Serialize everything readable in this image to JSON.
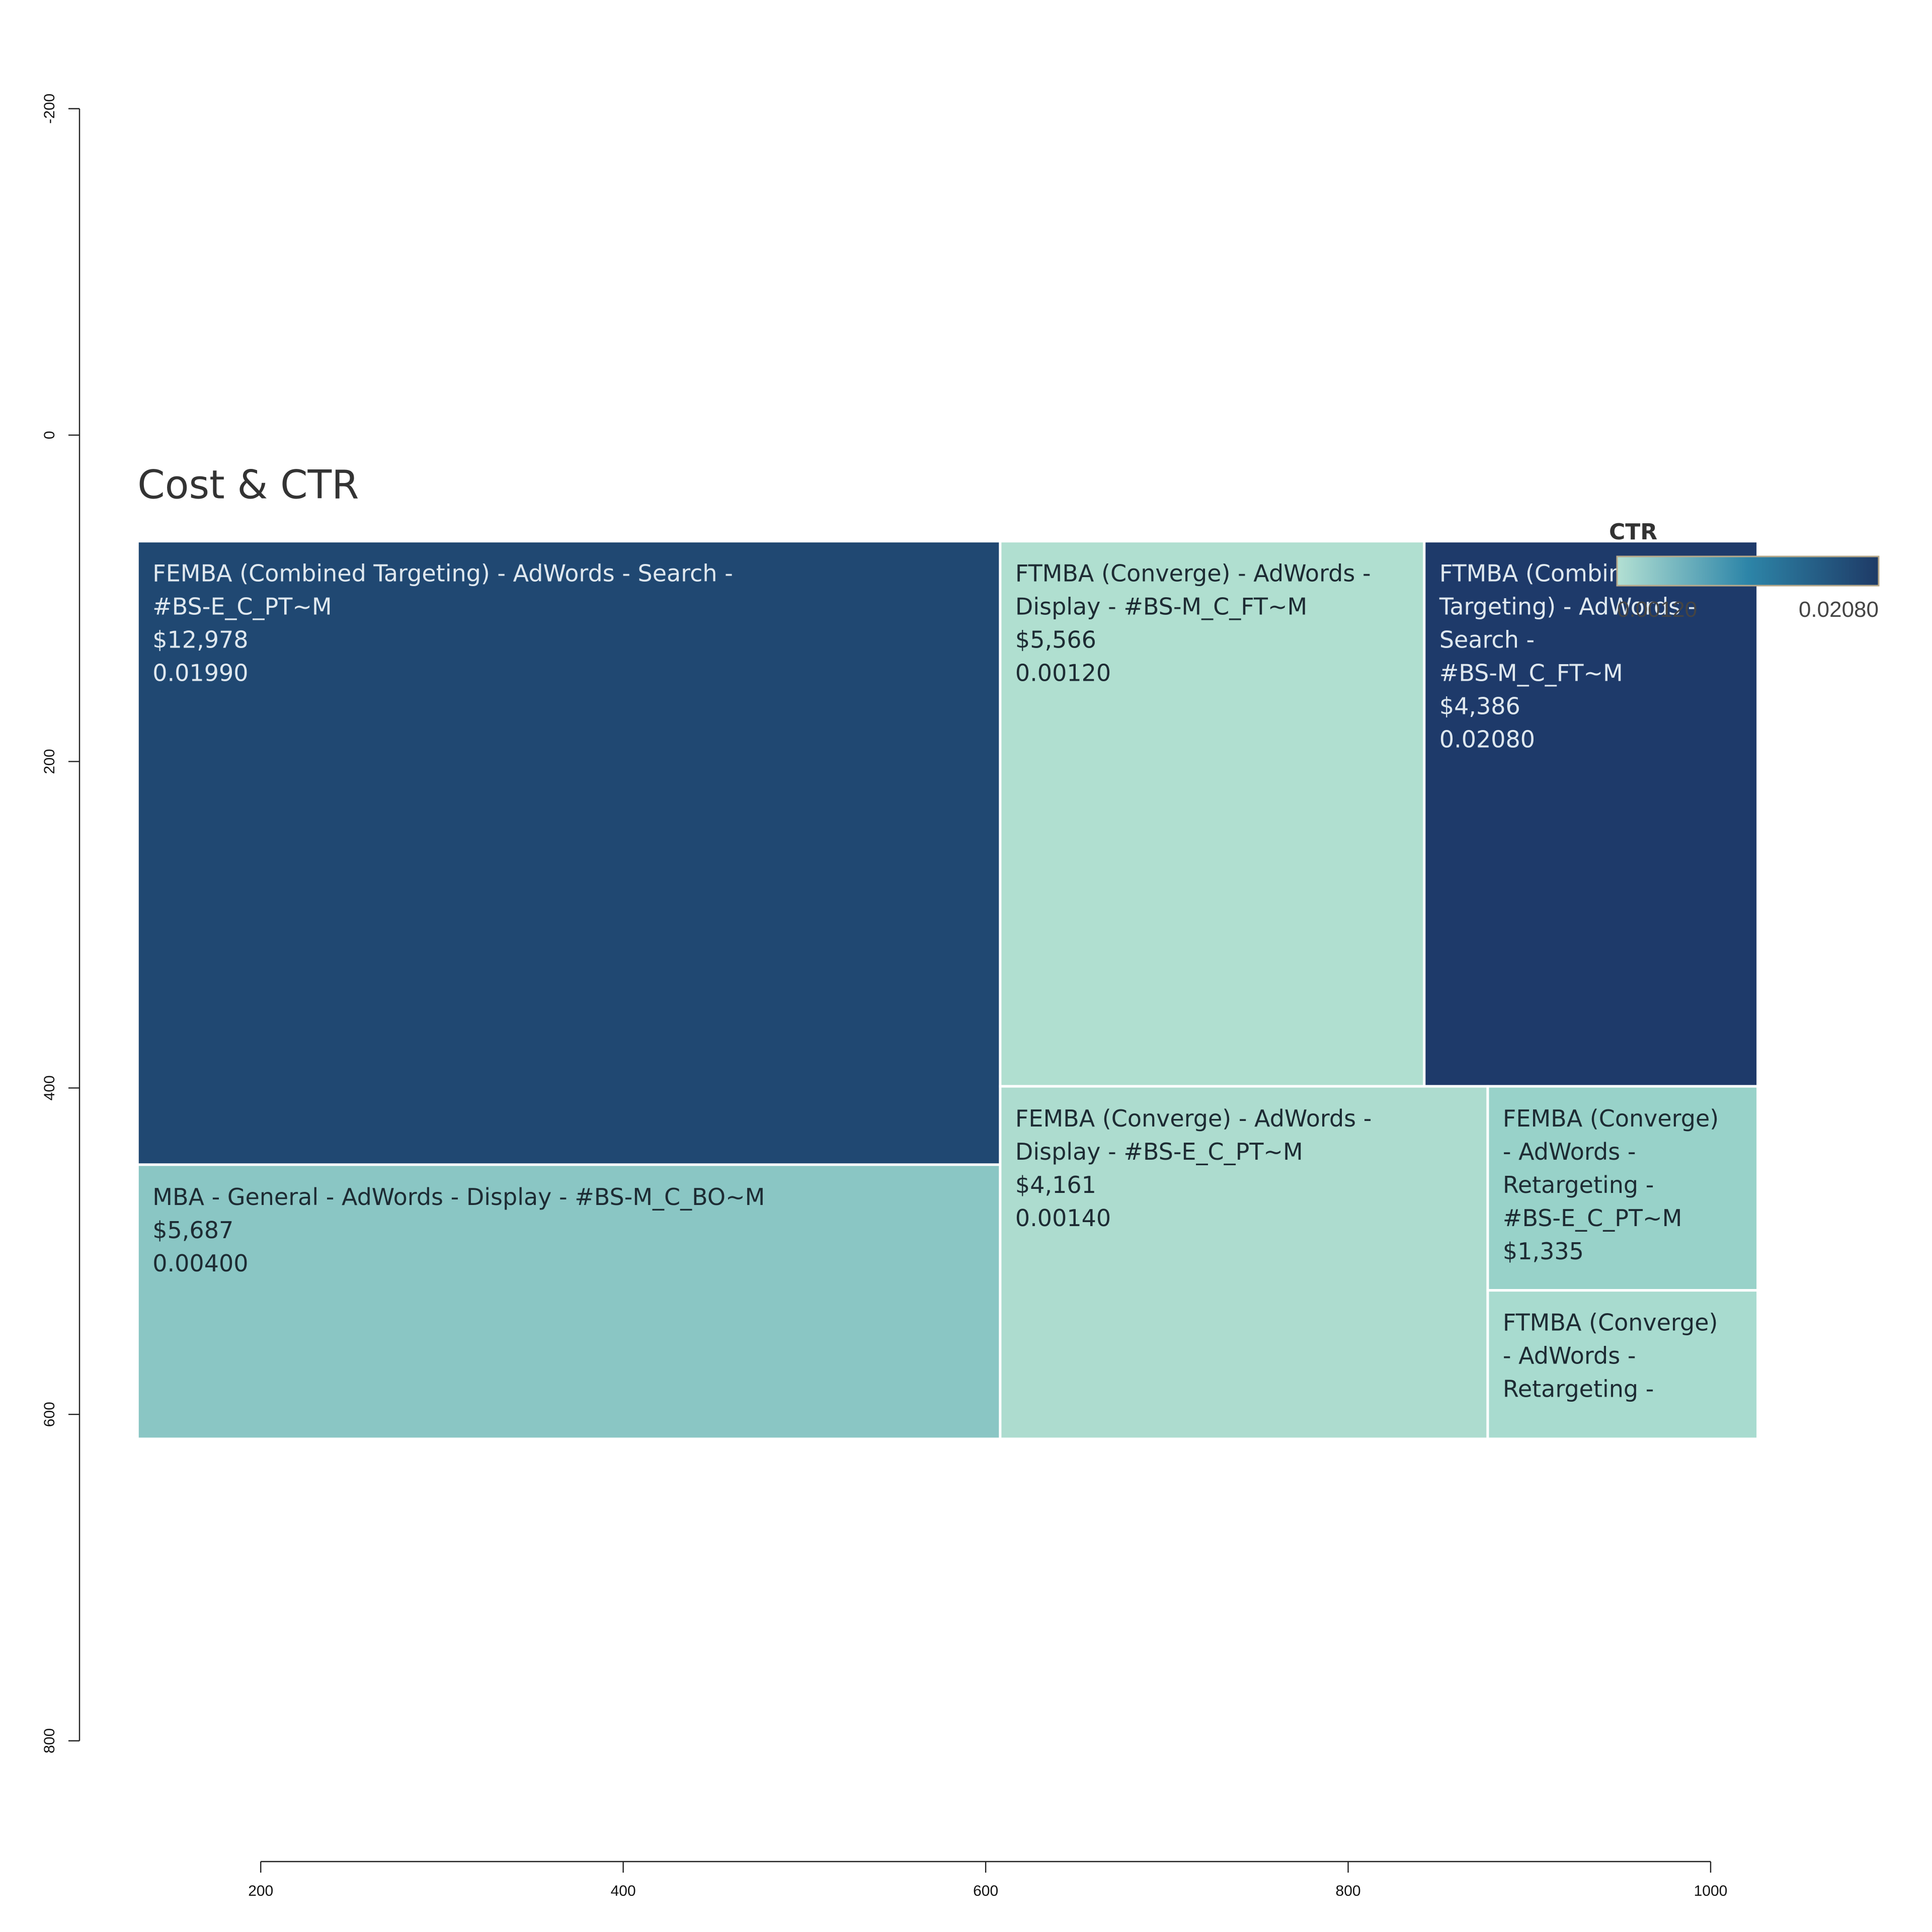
{
  "chart_data": {
    "type": "treemap",
    "title": "Cost & CTR",
    "xlim": [
      100,
      1000
    ],
    "ylim": [
      -200,
      800
    ],
    "x_ticks": [
      "200",
      "400",
      "600",
      "800",
      "1000"
    ],
    "y_ticks": [
      "-200",
      "0",
      "200",
      "400",
      "600",
      "800"
    ],
    "legend": {
      "title": "CTR",
      "min_label": "0.00120",
      "max_label": "0.02080",
      "min_value": 0.0012,
      "max_value": 0.0208,
      "colors": [
        "#b3e0d3",
        "#2d85a8",
        "#1e3a66"
      ]
    },
    "cells": [
      {
        "name": "FEMBA (Combined Targeting) - AdWords - Search - #BS-E_C_PT~M",
        "lines": [
          "FEMBA (Combined Targeting) - AdWords - Search -",
          "#BS-E_C_PT~M",
          "$12,978",
          "0.01990"
        ],
        "cost": 12978,
        "ctr": 0.0199,
        "x0": 132,
        "x1": 608,
        "y0": 65,
        "y1": 447,
        "fill": "#204872",
        "text_color": "#dfe8ef"
      },
      {
        "name": "MBA - General - AdWords - Display - #BS-M_C_BO~M",
        "lines": [
          "MBA - General - AdWords - Display - #BS-M_C_BO~M",
          "$5,687",
          "0.00400"
        ],
        "cost": 5687,
        "ctr": 0.004,
        "x0": 132,
        "x1": 608,
        "y0": 447,
        "y1": 615,
        "fill": "#8ac6c4",
        "text_color": "#1d2b33"
      },
      {
        "name": "FTMBA (Converge) - AdWords - Display - #BS-M_C_FT~M",
        "lines": [
          "FTMBA (Converge) - AdWords -",
          "Display - #BS-M_C_FT~M",
          "$5,566",
          "0.00120"
        ],
        "cost": 5566,
        "ctr": 0.0012,
        "x0": 608,
        "x1": 842,
        "y0": 65,
        "y1": 399,
        "fill": "#b0dfd0",
        "text_color": "#1d2b33"
      },
      {
        "name": "FTMBA (Combined Targeting) - AdWords - Search - #BS-M_C_FT~M",
        "lines": [
          "FTMBA (Combined",
          "Targeting) - AdWords -",
          "Search -",
          "#BS-M_C_FT~M",
          "$4,386",
          "0.02080"
        ],
        "cost": 4386,
        "ctr": 0.0208,
        "x0": 842,
        "x1": 1026,
        "y0": 65,
        "y1": 399,
        "fill": "#1e3a6a",
        "text_color": "#dfe8ef"
      },
      {
        "name": "FEMBA (Converge) - AdWords - Display - #BS-E_C_PT~M",
        "lines": [
          "FEMBA (Converge) - AdWords -",
          "Display - #BS-E_C_PT~M",
          "$4,161",
          "0.00140"
        ],
        "cost": 4161,
        "ctr": 0.0014,
        "x0": 608,
        "x1": 877,
        "y0": 399,
        "y1": 615,
        "fill": "#addccf",
        "text_color": "#1d2b33"
      },
      {
        "name": "FEMBA (Converge) - AdWords - Retargeting - #BS-E_C_PT~M",
        "lines": [
          "FEMBA (Converge)",
          "- AdWords -",
          "Retargeting -",
          "#BS-E_C_PT~M",
          "$1,335"
        ],
        "cost": 1335,
        "x0": 877,
        "x1": 1026,
        "y0": 399,
        "y1": 524,
        "fill": "#98d2c9",
        "text_color": "#1d2b33"
      },
      {
        "name": "FTMBA (Converge) - AdWords - Retargeting -",
        "lines": [
          "FTMBA (Converge)",
          "- AdWords -",
          "Retargeting -"
        ],
        "x0": 877,
        "x1": 1026,
        "y0": 524,
        "y1": 615,
        "fill": "#a8dbcf",
        "text_color": "#1d2b33"
      }
    ]
  }
}
